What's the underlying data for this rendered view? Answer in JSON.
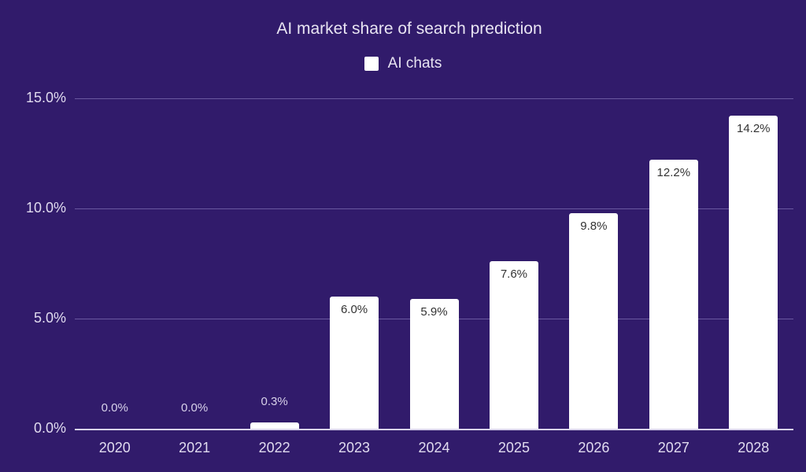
{
  "chart_data": {
    "type": "bar",
    "title": "AI market share of search prediction",
    "legend": [
      {
        "name": "AI chats",
        "color": "#ffffff"
      }
    ],
    "categories": [
      "2020",
      "2021",
      "2022",
      "2023",
      "2024",
      "2025",
      "2026",
      "2027",
      "2028"
    ],
    "series": [
      {
        "name": "AI chats",
        "values": [
          0.0,
          0.0,
          0.3,
          6.0,
          5.9,
          7.6,
          9.8,
          12.2,
          14.2
        ]
      }
    ],
    "value_labels": [
      "0.0%",
      "0.0%",
      "0.3%",
      "6.0%",
      "5.9%",
      "7.6%",
      "9.8%",
      "12.2%",
      "14.2%"
    ],
    "xlabel": "",
    "ylabel": "",
    "yticks": [
      "0.0%",
      "5.0%",
      "10.0%",
      "15.0%"
    ],
    "ylim": [
      0,
      15
    ],
    "grid": true,
    "legend_position": "top",
    "colors": {
      "background": "#311b6b",
      "bar": "#ffffff",
      "text": "#e0dbef"
    }
  }
}
